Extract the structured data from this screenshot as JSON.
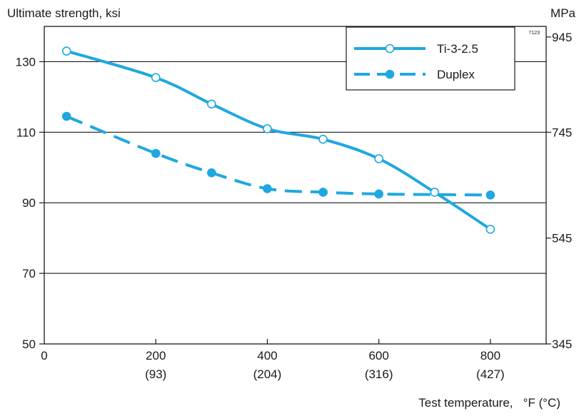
{
  "chart_data": {
    "type": "line",
    "figure_id": "7123",
    "ylabel_left": "Ultimate strength, ksi",
    "ylabel_right": "MPa",
    "xlabel": "Test temperature,   °F (°C)",
    "xlim": [
      0,
      900
    ],
    "ylim": [
      50,
      140
    ],
    "x_ticks": [
      {
        "value": 0,
        "label": "0",
        "sub": ""
      },
      {
        "value": 200,
        "label": "200",
        "sub": "(93)"
      },
      {
        "value": 400,
        "label": "400",
        "sub": "(204)"
      },
      {
        "value": 600,
        "label": "600",
        "sub": "(316)"
      },
      {
        "value": 800,
        "label": "800",
        "sub": "(427)"
      }
    ],
    "y_ticks_left": [
      50,
      70,
      90,
      110,
      130
    ],
    "y_ticks_right": [
      {
        "value": 50,
        "label": "345"
      },
      {
        "value": 80,
        "label": "545"
      },
      {
        "value": 110,
        "label": "745"
      },
      {
        "value": 137,
        "label": "945"
      }
    ],
    "grid": "horizontal",
    "legend_position": "top-right",
    "colors": {
      "series": "#1fa8e0",
      "grid": "#1a1a1a"
    },
    "series": [
      {
        "name": "Ti-3-2.5",
        "style": "solid",
        "marker": "open-circle",
        "x": [
          40,
          200,
          300,
          400,
          500,
          600,
          700,
          800
        ],
        "y": [
          133,
          125.5,
          118,
          111,
          108,
          102.5,
          93,
          82.5
        ]
      },
      {
        "name": "Duplex",
        "style": "dashed",
        "marker": "filled-circle",
        "x": [
          40,
          200,
          300,
          400,
          500,
          600,
          800
        ],
        "y": [
          114.5,
          104,
          98.5,
          94,
          93,
          92.5,
          92.2
        ]
      }
    ]
  }
}
